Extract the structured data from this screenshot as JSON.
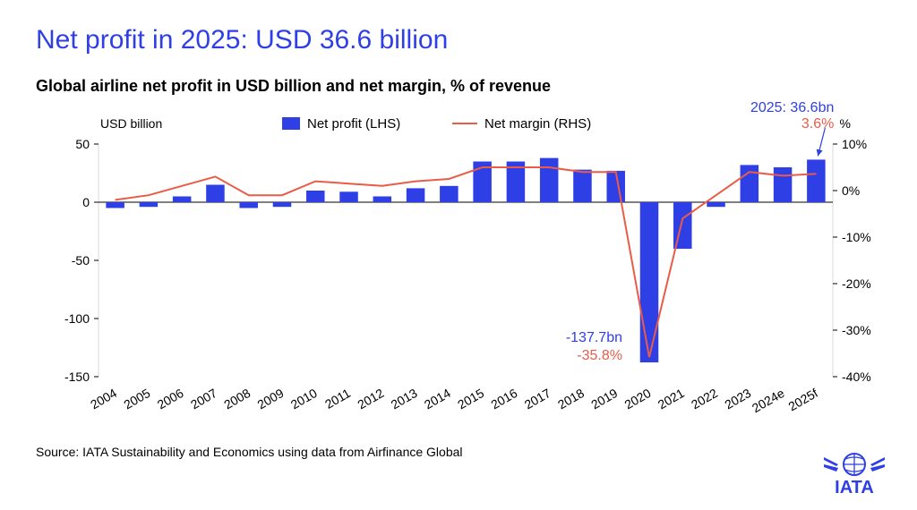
{
  "title": "Net profit in 2025: USD 36.6 billion",
  "subtitle": "Global airline net profit in USD billion and net margin, % of revenue",
  "source": "Source: IATA Sustainability and Economics using data from Airfinance Global",
  "logo_label": "IATA",
  "chart": {
    "type": "bar+line",
    "categories": [
      "2004",
      "2005",
      "2006",
      "2007",
      "2008",
      "2009",
      "2010",
      "2011",
      "2012",
      "2013",
      "2014",
      "2015",
      "2016",
      "2017",
      "2018",
      "2019",
      "2020",
      "2021",
      "2022",
      "2023",
      "2024e",
      "2025f"
    ],
    "net_profit_values": [
      -5,
      -4,
      5,
      15,
      -5,
      -4,
      10,
      9,
      5,
      12,
      14,
      35,
      35,
      38,
      28,
      27,
      -137.7,
      -40,
      -4,
      32,
      30,
      36.6
    ],
    "net_margin_values": [
      -2,
      -1,
      1,
      3,
      -1,
      -1,
      2,
      1.5,
      1,
      2,
      2.5,
      5,
      5,
      5,
      4,
      4,
      -35.8,
      -6,
      -1,
      4,
      3.2,
      3.6
    ],
    "bar_color": "#2e3fe6",
    "line_color": "#ea5b48",
    "axis_color": "#000000",
    "grid_color": "#c0c0c0",
    "background": "#ffffff",
    "bar_width": 0.55,
    "line_width": 2,
    "y_left": {
      "label": "USD billion",
      "min": -150,
      "max": 50,
      "step": 50
    },
    "y_right": {
      "label": "%",
      "min": -40,
      "max": 10,
      "step": 10
    },
    "legend": {
      "profit_label": "Net profit (LHS)",
      "margin_label": "Net margin (RHS)"
    },
    "annotations": {
      "low": {
        "profit_text": "-137.7bn",
        "margin_text": "-35.8%"
      },
      "last": {
        "profit_text": "2025: 36.6bn",
        "margin_text": "3.6%"
      }
    }
  }
}
